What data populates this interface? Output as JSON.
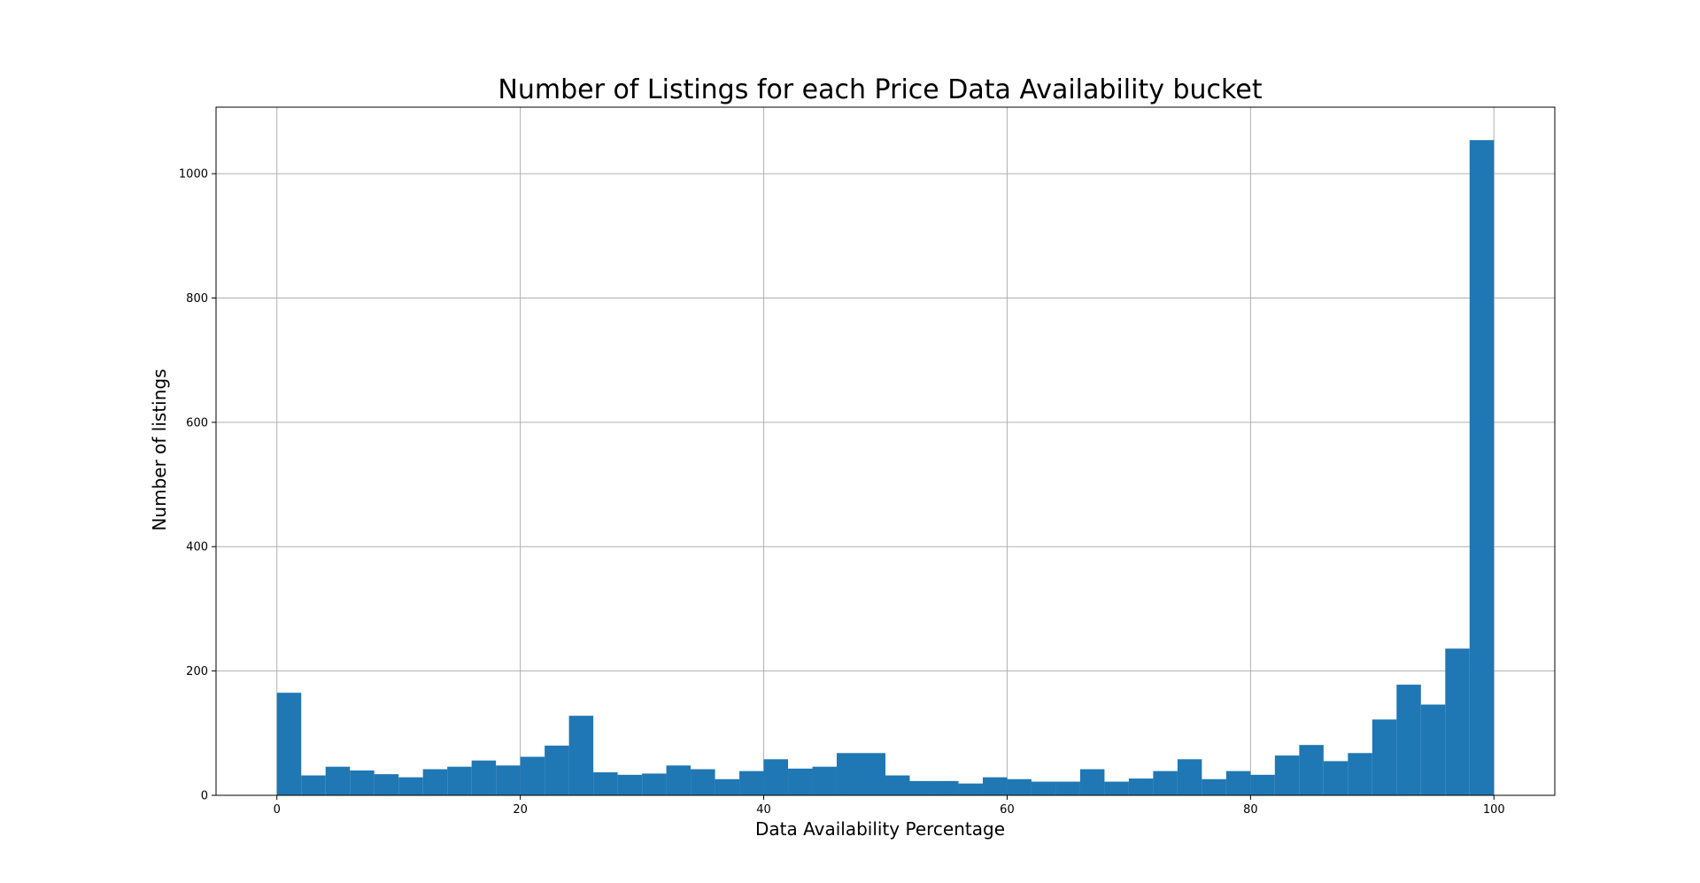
{
  "chart_data": {
    "type": "bar",
    "title": "Number of Listings for each Price Data Availability bucket",
    "xlabel": "Data Availability Percentage",
    "ylabel": "Number of listings",
    "xlim": [
      -5,
      105
    ],
    "ylim": [
      0,
      1107
    ],
    "xticks": [
      0,
      20,
      40,
      60,
      80,
      100
    ],
    "yticks": [
      0,
      200,
      400,
      600,
      800,
      1000
    ],
    "grid": true,
    "bins": {
      "start": 0,
      "end": 100,
      "count": 50
    },
    "values": [
      165,
      32,
      46,
      40,
      34,
      29,
      42,
      46,
      56,
      48,
      62,
      80,
      128,
      37,
      33,
      35,
      48,
      42,
      26,
      39,
      58,
      43,
      46,
      68,
      68,
      32,
      23,
      23,
      19,
      29,
      26,
      22,
      22,
      42,
      22,
      27,
      39,
      58,
      26,
      39,
      33,
      64,
      81,
      55,
      68,
      122,
      178,
      146,
      236,
      1054
    ],
    "colors": {
      "bar": "#1f77b4",
      "grid": "#b0b0b0",
      "axis": "#000000"
    }
  }
}
